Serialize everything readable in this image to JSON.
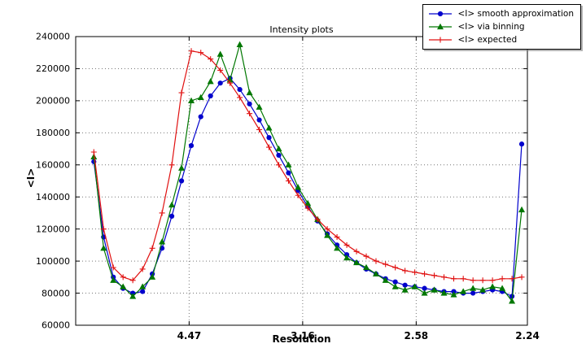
{
  "chart_data": {
    "type": "line",
    "title": "Intensity plots",
    "xlabel": "Resolution",
    "ylabel": "<I>",
    "grid": true,
    "legend_position": "upper-right-outside-overlapping",
    "x_axis": {
      "unit": "1/d^2 (resolution in Angstrom shown on ticks)",
      "min": 0.0,
      "max": 0.1993,
      "ticks": [
        {
          "label": "4.47",
          "value": 0.050048
        },
        {
          "label": "3.16",
          "value": 0.100144
        },
        {
          "label": "2.58",
          "value": 0.150231
        },
        {
          "label": "2.24",
          "value": 0.199298
        }
      ]
    },
    "y_axis": {
      "min": 60000,
      "max": 240000,
      "ticks": [
        60000,
        80000,
        100000,
        120000,
        140000,
        160000,
        180000,
        200000,
        220000,
        240000
      ]
    },
    "x": [
      0.008,
      0.0123,
      0.0166,
      0.0209,
      0.0252,
      0.0295,
      0.0338,
      0.0381,
      0.0424,
      0.0467,
      0.051,
      0.0552,
      0.0595,
      0.0638,
      0.0681,
      0.0724,
      0.0767,
      0.081,
      0.0853,
      0.0896,
      0.0939,
      0.0981,
      0.1024,
      0.1067,
      0.111,
      0.1153,
      0.1196,
      0.1239,
      0.1282,
      0.1325,
      0.1367,
      0.141,
      0.1453,
      0.1496,
      0.1539,
      0.1582,
      0.1625,
      0.1668,
      0.171,
      0.1753,
      0.1796,
      0.1839,
      0.1882,
      0.1925,
      0.1968
    ],
    "series": [
      {
        "name": "<I> smooth approximation",
        "color": "#0000cc",
        "marker": "circle",
        "values": [
          162000,
          115000,
          90000,
          83000,
          80000,
          81000,
          92000,
          108000,
          128000,
          150000,
          172000,
          190000,
          203000,
          211000,
          214000,
          207000,
          198000,
          188000,
          177000,
          166000,
          155000,
          144000,
          134000,
          125000,
          117000,
          110000,
          104000,
          99000,
          95000,
          92000,
          89000,
          87000,
          85000,
          84000,
          83000,
          82000,
          81000,
          81000,
          80000,
          80000,
          81000,
          82000,
          81000,
          78000,
          173000
        ]
      },
      {
        "name": "<I> via binning",
        "color": "#007700",
        "marker": "triangle",
        "values": [
          165000,
          108000,
          88000,
          84000,
          78000,
          84000,
          90000,
          112000,
          135000,
          158000,
          200000,
          202000,
          212000,
          229000,
          213000,
          235000,
          205000,
          196000,
          183000,
          170000,
          160000,
          146000,
          136000,
          126000,
          116000,
          108000,
          102000,
          99000,
          96000,
          92000,
          88000,
          84000,
          82000,
          84000,
          80000,
          82000,
          80000,
          79000,
          81000,
          83000,
          82000,
          84000,
          83000,
          75000,
          132000
        ]
      },
      {
        "name": "<I> expected",
        "color": "#e01010",
        "marker": "plus",
        "values": [
          168000,
          120000,
          96000,
          90000,
          88000,
          95000,
          108000,
          130000,
          160000,
          205000,
          231000,
          230000,
          226000,
          219000,
          211000,
          202000,
          192000,
          182000,
          171000,
          160000,
          150000,
          141000,
          133000,
          126000,
          120000,
          115000,
          110000,
          106000,
          103000,
          100000,
          98000,
          96000,
          94000,
          93000,
          92000,
          91000,
          90000,
          89000,
          89000,
          88000,
          88000,
          88000,
          89000,
          89000,
          90000
        ]
      }
    ],
    "colors": {
      "axis": "#000000",
      "grid": "#777777",
      "background": "#ffffff"
    }
  }
}
